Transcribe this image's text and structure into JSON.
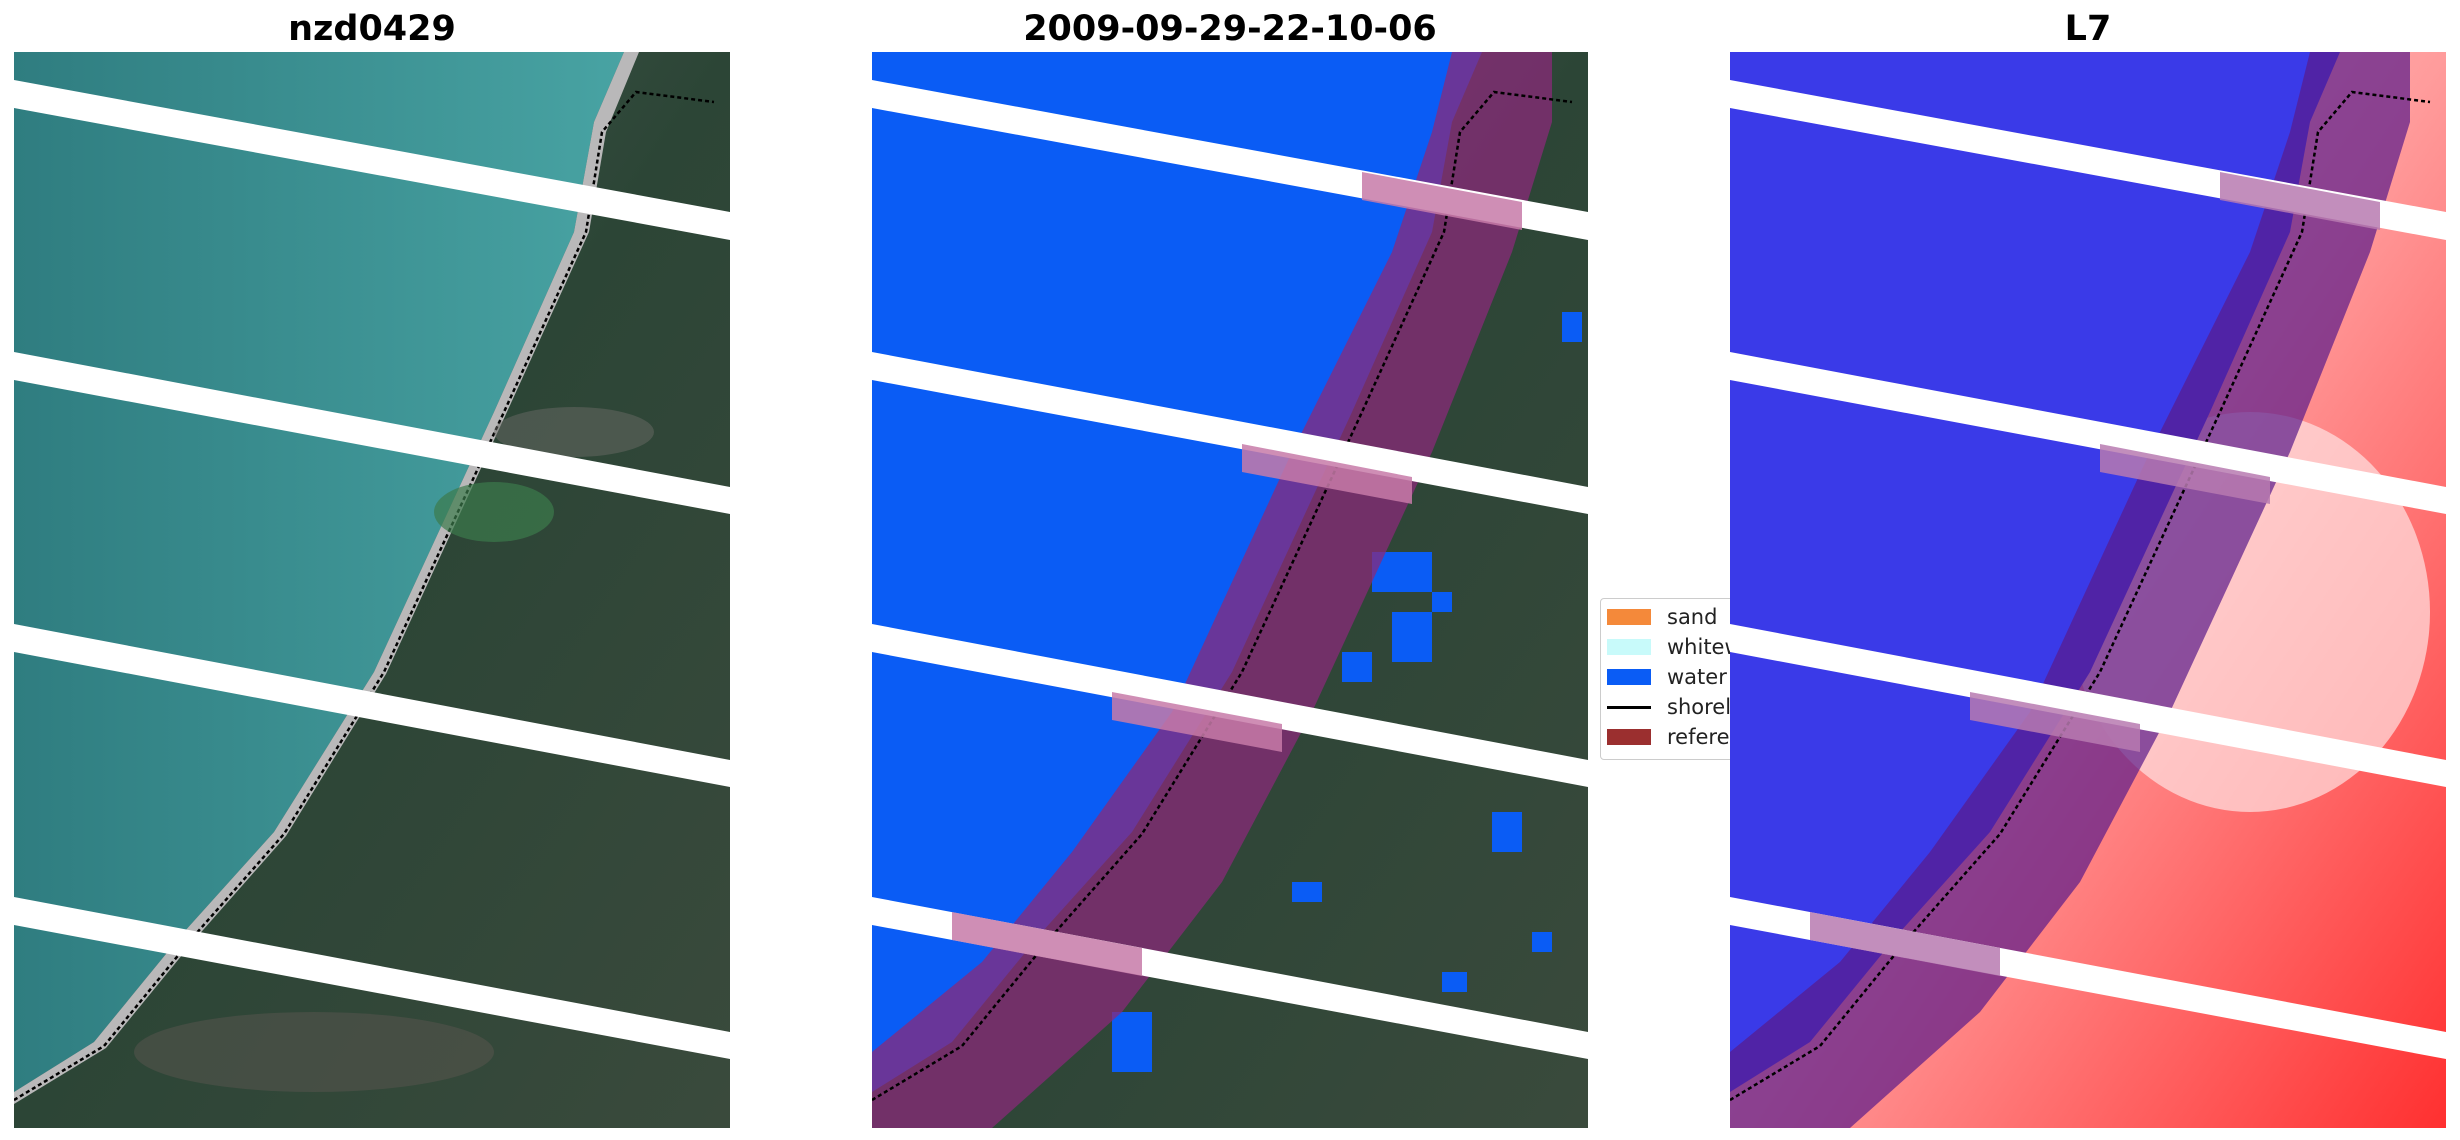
{
  "panels": [
    {
      "title": "nzd0429"
    },
    {
      "title": "2009-09-29-22-10-06"
    },
    {
      "title": "L7"
    }
  ],
  "legend": {
    "items": [
      {
        "label": "sand",
        "color": "#f4893a",
        "kind": "patch"
      },
      {
        "label": "whitewater",
        "color": "#c8fafa",
        "kind": "patch"
      },
      {
        "label": "water",
        "color": "#0a5cf5",
        "kind": "patch"
      },
      {
        "label": "shoreline",
        "color": "#000000",
        "kind": "line"
      },
      {
        "label": "reference shoreline buffer",
        "color": "#9b2f2f",
        "kind": "patch"
      }
    ]
  },
  "colors": {
    "ocean": "#3a8f8f",
    "land": "#2f4a3a",
    "water_class": "#0a5cf5",
    "buffer": "#8a2a7a",
    "mndwi_water": "#3a3ae8",
    "mndwi_land": "#ff5050"
  }
}
